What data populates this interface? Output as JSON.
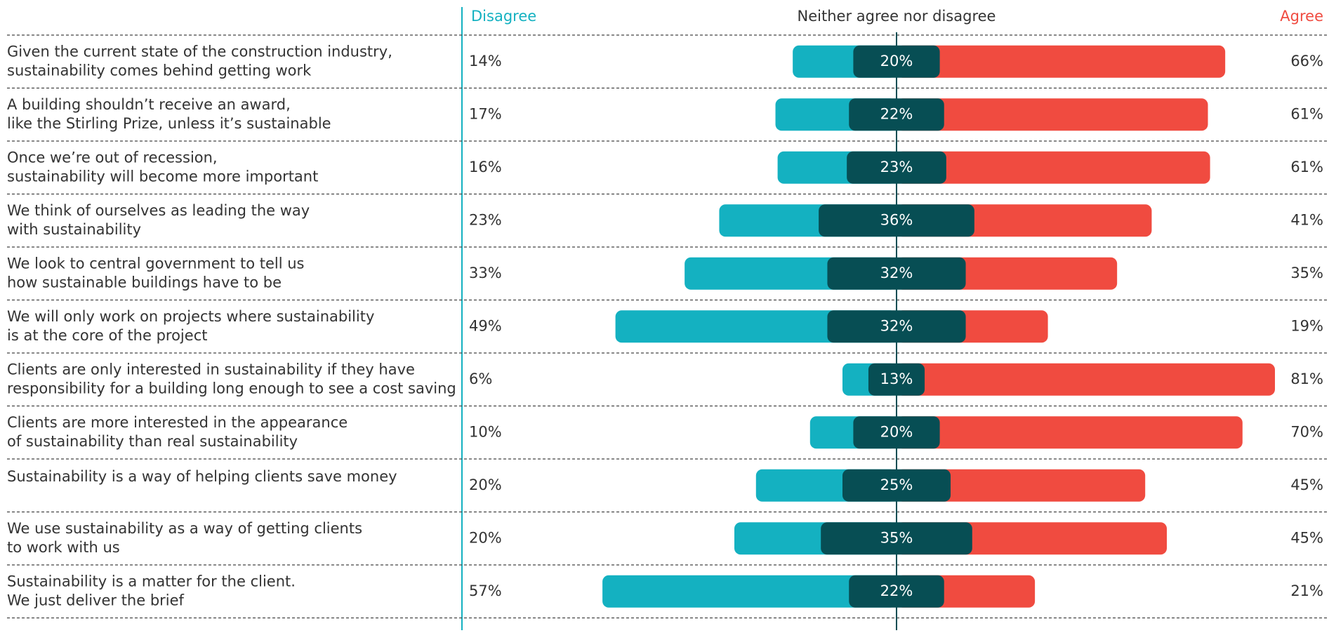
{
  "chart_data": {
    "type": "diverging_bar",
    "categories": [
      [
        "Given the current state of the construction industry,",
        "sustainability comes behind getting work"
      ],
      [
        "A building shouldn’t receive an award,",
        "like the Stirling Prize, unless it’s sustainable"
      ],
      [
        "Once we’re out of recession,",
        "sustainability will become more important"
      ],
      [
        "We think of ourselves as leading the way",
        "with sustainability"
      ],
      [
        "We look to central government to tell us",
        "how sustainable buildings have to be"
      ],
      [
        "We will only work on projects where sustainability",
        "is at the core of the project"
      ],
      [
        "Clients are only interested in sustainability if they have",
        "responsibility for a building long enough to see a cost saving"
      ],
      [
        "Clients are more interested in the appearance",
        "of sustainability than real sustainability"
      ],
      [
        "Sustainability is a way of helping clients save money"
      ],
      [
        "We use sustainability as a way of getting clients",
        "to work with us"
      ],
      [
        "Sustainability is a matter for the client.",
        "We just deliver the brief"
      ]
    ],
    "series": [
      {
        "name": "Disagree",
        "color": "#14b1c1",
        "values": [
          14,
          17,
          16,
          23,
          33,
          49,
          6,
          10,
          20,
          20,
          57
        ],
        "value_labels": [
          "14%",
          "17%",
          "16%",
          "23%",
          "33%",
          "49%",
          "6%",
          "10%",
          "20%",
          "20%",
          "57%"
        ]
      },
      {
        "name": "Neither agree nor disagree",
        "color": "#074e54",
        "values": [
          20,
          22,
          23,
          36,
          32,
          32,
          13,
          20,
          25,
          35,
          22
        ],
        "value_labels": [
          "20%",
          "22%",
          "23%",
          "36%",
          "32%",
          "32%",
          "13%",
          "20%",
          "25%",
          "35%",
          "22%"
        ]
      },
      {
        "name": "Agree",
        "color": "#f04b40",
        "values": [
          66,
          61,
          61,
          41,
          35,
          19,
          81,
          70,
          45,
          45,
          21
        ],
        "value_labels": [
          "66%",
          "61%",
          "61%",
          "41%",
          "35%",
          "19%",
          "81%",
          "70%",
          "45%",
          "45%",
          "21%"
        ]
      }
    ]
  }
}
